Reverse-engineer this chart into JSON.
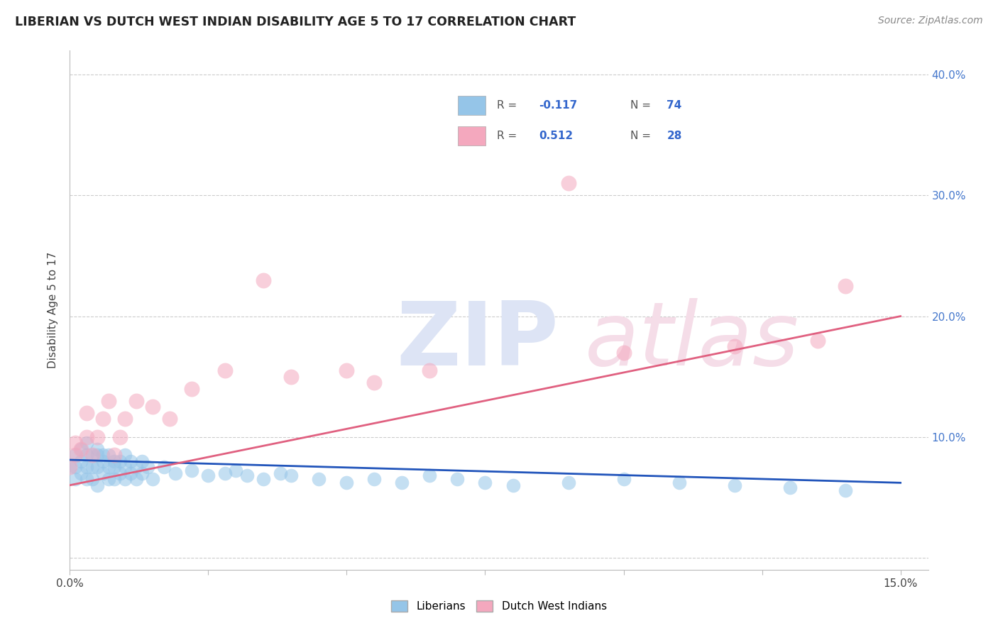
{
  "title": "LIBERIAN VS DUTCH WEST INDIAN DISABILITY AGE 5 TO 17 CORRELATION CHART",
  "source_text": "Source: ZipAtlas.com",
  "ylabel": "Disability Age 5 to 17",
  "xlim": [
    0.0,
    0.155
  ],
  "ylim": [
    -0.01,
    0.42
  ],
  "color_blue": "#95c5e8",
  "color_pink": "#f4a8be",
  "line_blue": "#2255bb",
  "line_pink": "#e06080",
  "watermark_zip_color": "#dde4f5",
  "watermark_atlas_color": "#f5dde8",
  "background_color": "#ffffff",
  "lib_x": [
    0.0,
    0.001,
    0.001,
    0.001,
    0.002,
    0.002,
    0.002,
    0.003,
    0.003,
    0.003,
    0.003,
    0.004,
    0.004,
    0.004,
    0.005,
    0.005,
    0.005,
    0.005,
    0.006,
    0.006,
    0.006,
    0.007,
    0.007,
    0.007,
    0.008,
    0.008,
    0.008,
    0.009,
    0.009,
    0.01,
    0.01,
    0.01,
    0.011,
    0.011,
    0.012,
    0.012,
    0.013,
    0.013,
    0.014,
    0.015,
    0.017,
    0.019,
    0.022,
    0.025,
    0.028,
    0.03,
    0.032,
    0.035,
    0.038,
    0.04,
    0.045,
    0.05,
    0.055,
    0.06,
    0.065,
    0.07,
    0.075,
    0.08,
    0.09,
    0.1,
    0.11,
    0.12,
    0.13,
    0.14
  ],
  "lib_y": [
    0.075,
    0.085,
    0.075,
    0.065,
    0.09,
    0.08,
    0.07,
    0.085,
    0.095,
    0.075,
    0.065,
    0.085,
    0.075,
    0.065,
    0.09,
    0.085,
    0.075,
    0.06,
    0.085,
    0.08,
    0.07,
    0.085,
    0.075,
    0.065,
    0.08,
    0.075,
    0.065,
    0.08,
    0.07,
    0.085,
    0.075,
    0.065,
    0.08,
    0.07,
    0.075,
    0.065,
    0.08,
    0.07,
    0.075,
    0.065,
    0.075,
    0.07,
    0.072,
    0.068,
    0.07,
    0.072,
    0.068,
    0.065,
    0.07,
    0.068,
    0.065,
    0.062,
    0.065,
    0.062,
    0.068,
    0.065,
    0.062,
    0.06,
    0.062,
    0.065,
    0.062,
    0.06,
    0.058,
    0.056
  ],
  "dutch_x": [
    0.0,
    0.001,
    0.001,
    0.002,
    0.003,
    0.003,
    0.004,
    0.005,
    0.006,
    0.007,
    0.008,
    0.009,
    0.01,
    0.012,
    0.015,
    0.018,
    0.022,
    0.028,
    0.035,
    0.04,
    0.05,
    0.055,
    0.065,
    0.09,
    0.1,
    0.12,
    0.135,
    0.14
  ],
  "dutch_y": [
    0.075,
    0.085,
    0.095,
    0.09,
    0.1,
    0.12,
    0.085,
    0.1,
    0.115,
    0.13,
    0.085,
    0.1,
    0.115,
    0.13,
    0.125,
    0.115,
    0.14,
    0.155,
    0.23,
    0.15,
    0.155,
    0.145,
    0.155,
    0.31,
    0.17,
    0.175,
    0.18,
    0.225
  ]
}
